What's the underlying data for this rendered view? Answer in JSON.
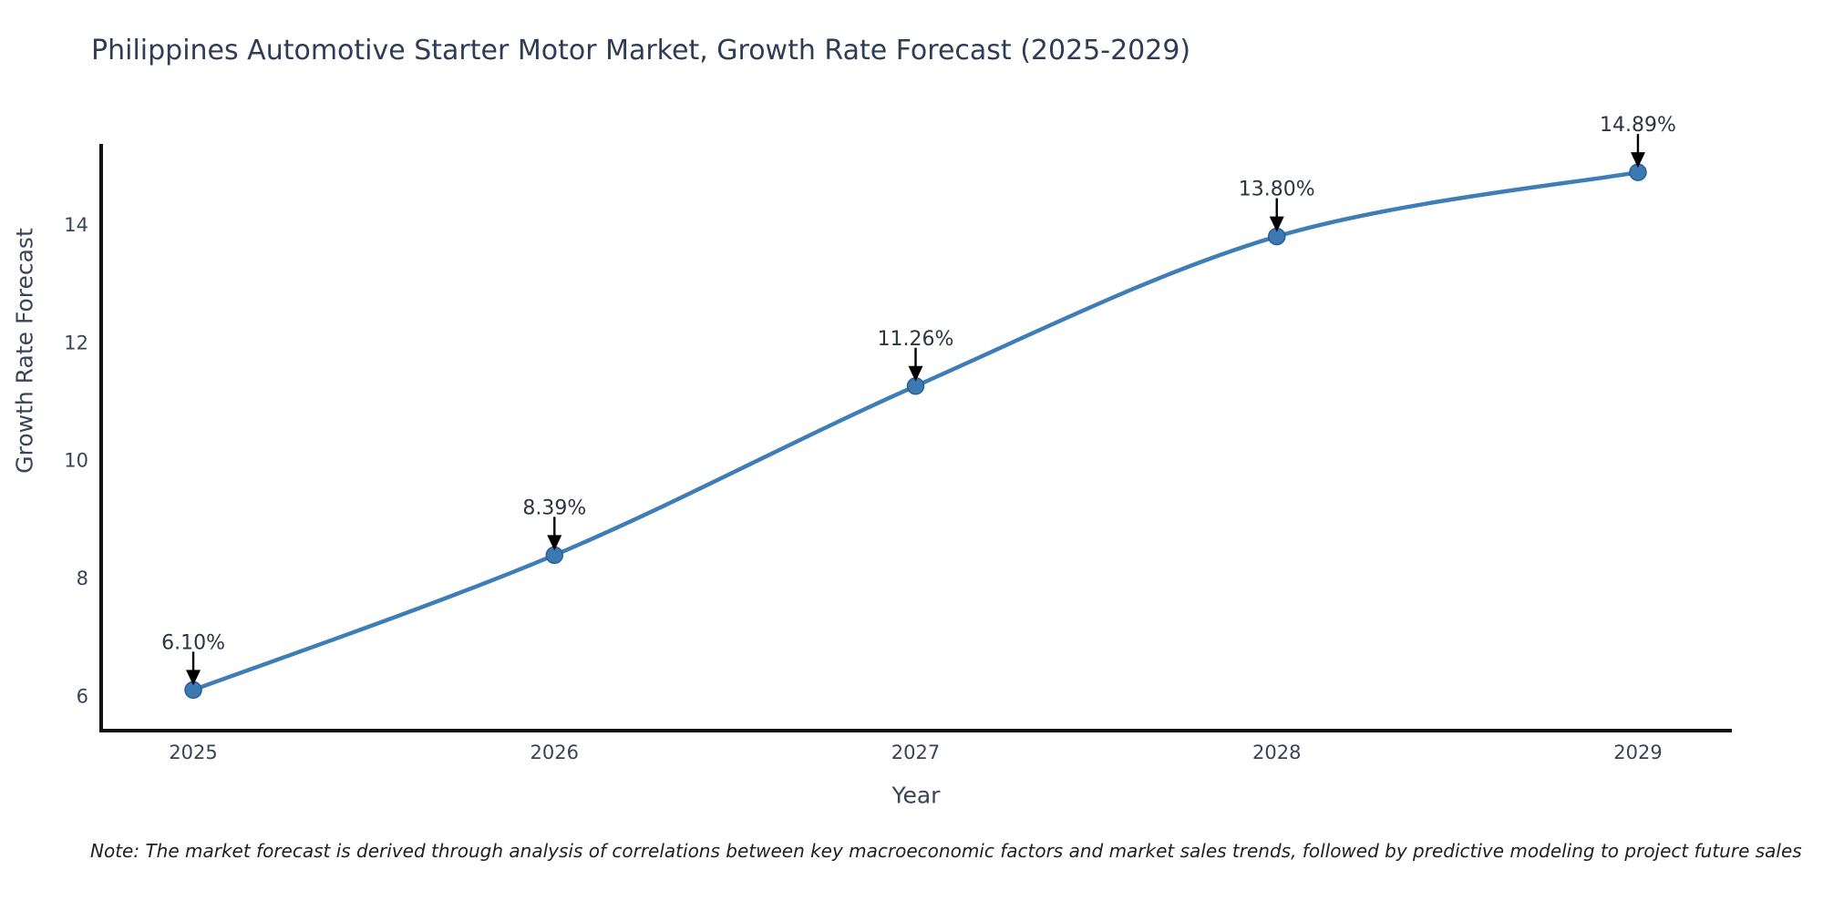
{
  "chart_data": {
    "type": "line",
    "title": "Philippines Automotive Starter Motor Market, Growth Rate Forecast (2025-2029)",
    "xlabel": "Year",
    "ylabel": "Growth Rate Forecast",
    "categories": [
      2025,
      2026,
      2027,
      2028,
      2029
    ],
    "values": [
      6.1,
      8.39,
      11.26,
      13.8,
      14.89
    ],
    "point_labels": [
      "6.10%",
      "8.39%",
      "11.26%",
      "13.80%",
      "14.89%"
    ],
    "yticks": [
      6,
      8,
      10,
      12,
      14
    ],
    "ylim": [
      5.41,
      15.34
    ],
    "xlim": [
      2024.745,
      2029.26
    ],
    "grid": false,
    "legend": "none",
    "colors": {
      "line": "#3f7db6",
      "marker_fill": "#3a79b2",
      "marker_edge": "#2a5f96",
      "spine": "#111111",
      "tick_text": "#3a4458",
      "annotation_text": "#2d3442",
      "arrow": "#000000"
    },
    "note": "Note: The market forecast is derived through analysis of correlations between key macroeconomic factors and market sales trends, followed by predictive modeling to project future sales"
  }
}
